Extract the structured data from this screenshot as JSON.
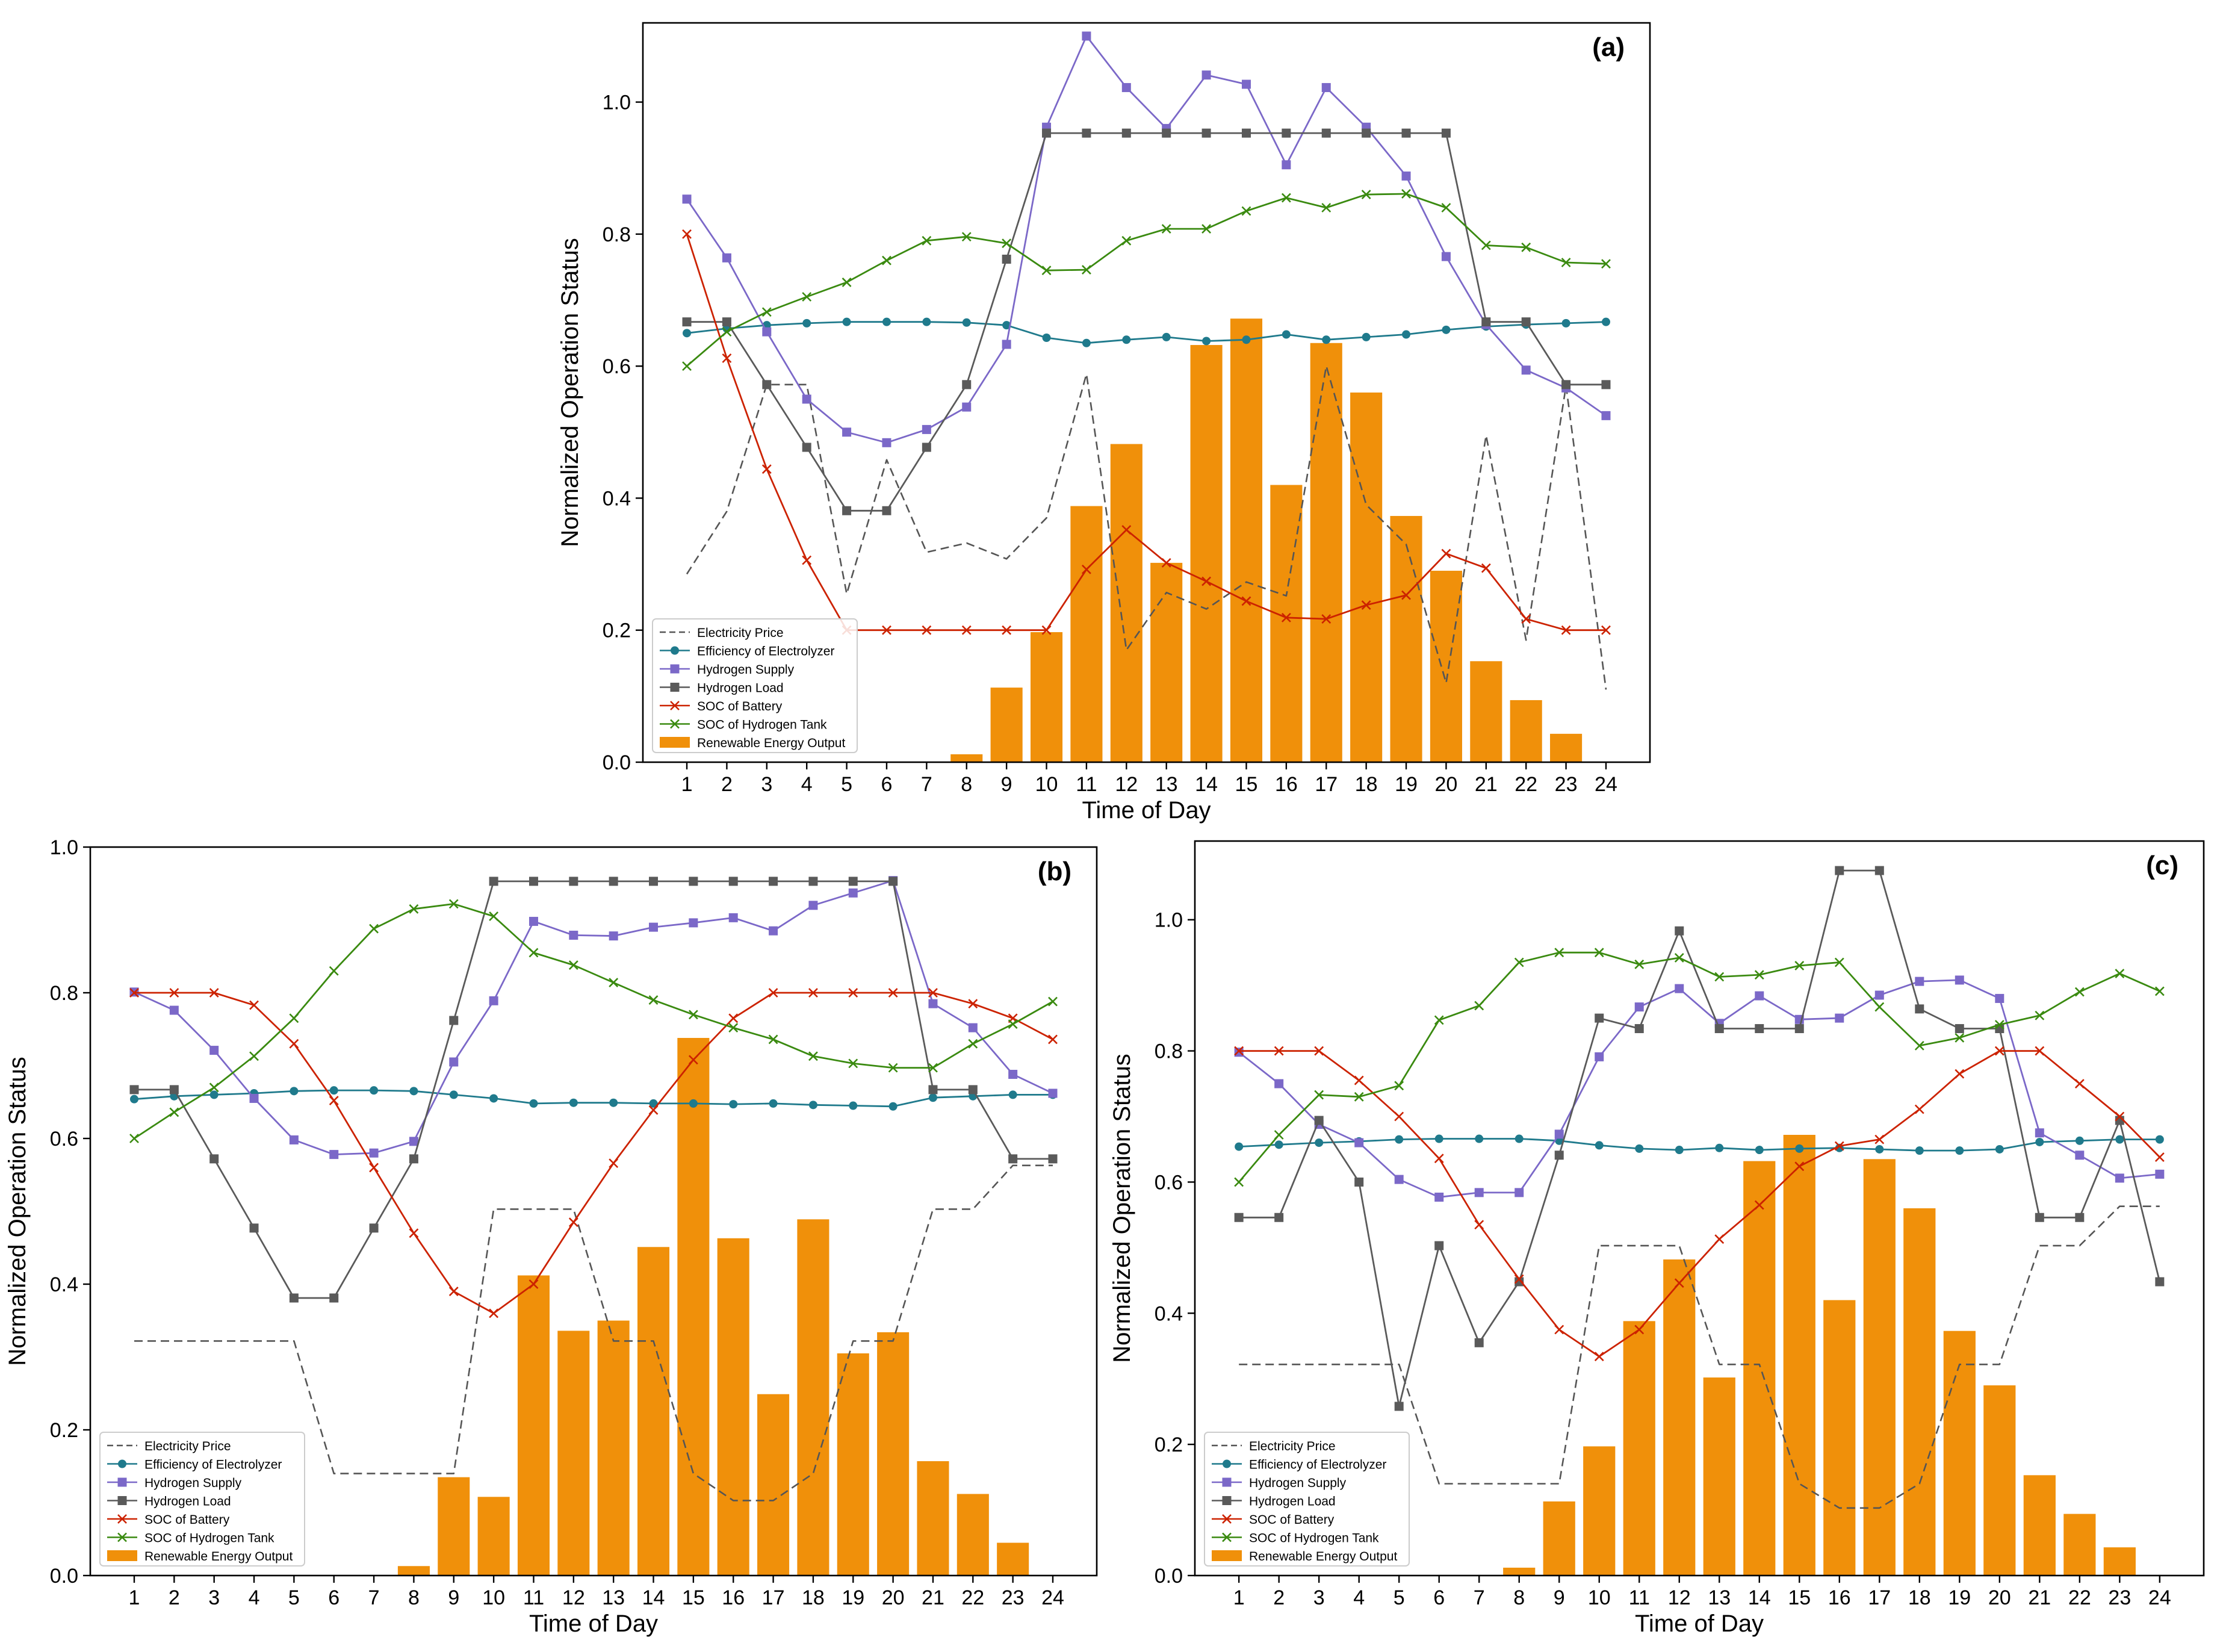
{
  "legend": {
    "price": "Electricity Price",
    "eff": "Efficiency of Electrolyzer",
    "supply": "Hydrogen Supply",
    "load": "Hydrogen Load",
    "socb": "SOC of Battery",
    "soch": "SOC of Hydrogen Tank",
    "ren": "Renewable Energy Output"
  },
  "colors": {
    "price": "#555555",
    "eff": "#1f7a8c",
    "supply": "#7b68c8",
    "load": "#5a5a5a",
    "socb": "#cc2200",
    "soch": "#3a8a10",
    "ren": "#f0900a"
  },
  "chart_data": [
    {
      "panel": "(a)",
      "type": "bar+line",
      "xlabel": "Time of Day",
      "ylabel": "Normalized Operation Status",
      "categories": [
        1,
        2,
        3,
        4,
        5,
        6,
        7,
        8,
        9,
        10,
        11,
        12,
        13,
        14,
        15,
        16,
        17,
        18,
        19,
        20,
        21,
        22,
        23,
        24
      ],
      "ylim": [
        0,
        1.12
      ],
      "yticks": [
        0.0,
        0.2,
        0.4,
        0.6,
        0.8,
        1.0
      ],
      "ren": [
        0,
        0,
        0,
        0,
        0,
        0,
        0,
        0.012,
        0.113,
        0.197,
        0.388,
        0.482,
        0.302,
        0.632,
        0.672,
        0.42,
        0.635,
        0.56,
        0.373,
        0.29,
        0.153,
        0.094,
        0.043,
        0
      ],
      "price": [
        0.285,
        0.38,
        0.572,
        0.572,
        0.255,
        0.458,
        0.318,
        0.332,
        0.308,
        0.37,
        0.588,
        0.17,
        0.257,
        0.232,
        0.273,
        0.252,
        0.6,
        0.39,
        0.33,
        0.12,
        0.495,
        0.185,
        0.57,
        0.11
      ],
      "eff": [
        0.65,
        0.657,
        0.662,
        0.665,
        0.667,
        0.667,
        0.667,
        0.666,
        0.662,
        0.643,
        0.635,
        0.64,
        0.644,
        0.638,
        0.64,
        0.648,
        0.64,
        0.644,
        0.648,
        0.655,
        0.66,
        0.663,
        0.665,
        0.667
      ],
      "supply": [
        0.853,
        0.764,
        0.652,
        0.55,
        0.5,
        0.484,
        0.504,
        0.538,
        0.633,
        0.962,
        1.1,
        1.022,
        0.96,
        1.041,
        1.027,
        0.905,
        1.022,
        0.962,
        0.888,
        0.766,
        0.663,
        0.594,
        0.567,
        0.525
      ],
      "load": [
        0.667,
        0.667,
        0.572,
        0.477,
        0.381,
        0.381,
        0.477,
        0.572,
        0.762,
        0.953,
        0.953,
        0.953,
        0.953,
        0.953,
        0.953,
        0.953,
        0.953,
        0.953,
        0.953,
        0.953,
        0.667,
        0.667,
        0.572,
        0.572
      ],
      "socb": [
        0.8,
        0.612,
        0.444,
        0.306,
        0.2,
        0.2,
        0.2,
        0.2,
        0.2,
        0.2,
        0.292,
        0.352,
        0.302,
        0.274,
        0.244,
        0.219,
        0.217,
        0.238,
        0.253,
        0.316,
        0.294,
        0.217,
        0.2,
        0.2
      ],
      "soch": [
        0.6,
        0.652,
        0.682,
        0.705,
        0.727,
        0.76,
        0.79,
        0.796,
        0.786,
        0.745,
        0.746,
        0.79,
        0.808,
        0.808,
        0.835,
        0.855,
        0.84,
        0.86,
        0.861,
        0.84,
        0.783,
        0.78,
        0.757,
        0.755
      ]
    },
    {
      "panel": "(b)",
      "type": "bar+line",
      "xlabel": "Time of Day",
      "ylabel": "Normalized Operation Status",
      "categories": [
        1,
        2,
        3,
        4,
        5,
        6,
        7,
        8,
        9,
        10,
        11,
        12,
        13,
        14,
        15,
        16,
        17,
        18,
        19,
        20,
        21,
        22,
        23,
        24
      ],
      "ylim": [
        0,
        1.0
      ],
      "yticks": [
        0.0,
        0.2,
        0.4,
        0.6,
        0.8,
        1.0
      ],
      "ren": [
        0,
        0,
        0,
        0,
        0,
        0,
        0,
        0.013,
        0.135,
        0.108,
        0.412,
        0.336,
        0.35,
        0.451,
        0.738,
        0.463,
        0.249,
        0.489,
        0.305,
        0.334,
        0.157,
        0.112,
        0.045,
        0
      ],
      "price": [
        0.322,
        0.322,
        0.322,
        0.322,
        0.322,
        0.14,
        0.14,
        0.14,
        0.14,
        0.503,
        0.503,
        0.503,
        0.322,
        0.322,
        0.14,
        0.103,
        0.103,
        0.14,
        0.322,
        0.322,
        0.503,
        0.503,
        0.563,
        0.563
      ],
      "eff": [
        0.654,
        0.658,
        0.66,
        0.662,
        0.665,
        0.666,
        0.666,
        0.665,
        0.66,
        0.655,
        0.648,
        0.649,
        0.649,
        0.648,
        0.648,
        0.647,
        0.648,
        0.646,
        0.645,
        0.644,
        0.656,
        0.658,
        0.66,
        0.66
      ],
      "supply": [
        0.801,
        0.776,
        0.721,
        0.655,
        0.598,
        0.578,
        0.58,
        0.596,
        0.705,
        0.789,
        0.898,
        0.879,
        0.878,
        0.89,
        0.896,
        0.903,
        0.885,
        0.92,
        0.937,
        0.954,
        0.785,
        0.752,
        0.688,
        0.662
      ],
      "load": [
        0.667,
        0.667,
        0.572,
        0.477,
        0.381,
        0.381,
        0.477,
        0.572,
        0.762,
        0.953,
        0.953,
        0.953,
        0.953,
        0.953,
        0.953,
        0.953,
        0.953,
        0.953,
        0.953,
        0.953,
        0.667,
        0.667,
        0.572,
        0.572
      ],
      "socb": [
        0.8,
        0.8,
        0.8,
        0.783,
        0.73,
        0.652,
        0.56,
        0.47,
        0.39,
        0.36,
        0.4,
        0.485,
        0.566,
        0.639,
        0.708,
        0.765,
        0.8,
        0.8,
        0.8,
        0.8,
        0.8,
        0.785,
        0.765,
        0.736
      ],
      "soch": [
        0.6,
        0.636,
        0.67,
        0.713,
        0.765,
        0.83,
        0.888,
        0.915,
        0.922,
        0.905,
        0.855,
        0.838,
        0.814,
        0.79,
        0.77,
        0.752,
        0.736,
        0.713,
        0.703,
        0.697,
        0.697,
        0.73,
        0.757,
        0.788
      ]
    },
    {
      "panel": "(c)",
      "type": "bar+line",
      "xlabel": "Time of Day",
      "ylabel": "Normalized Operation Status",
      "categories": [
        1,
        2,
        3,
        4,
        5,
        6,
        7,
        8,
        9,
        10,
        11,
        12,
        13,
        14,
        15,
        16,
        17,
        18,
        19,
        20,
        21,
        22,
        23,
        24
      ],
      "ylim": [
        0,
        1.12
      ],
      "yticks": [
        0.0,
        0.2,
        0.4,
        0.6,
        0.8,
        1.0
      ],
      "ren": [
        0,
        0,
        0,
        0,
        0,
        0,
        0,
        0.012,
        0.113,
        0.197,
        0.388,
        0.482,
        0.302,
        0.632,
        0.672,
        0.42,
        0.635,
        0.56,
        0.373,
        0.29,
        0.153,
        0.094,
        0.043,
        0
      ],
      "price": [
        0.322,
        0.322,
        0.322,
        0.322,
        0.322,
        0.14,
        0.14,
        0.14,
        0.14,
        0.503,
        0.503,
        0.503,
        0.322,
        0.322,
        0.14,
        0.103,
        0.103,
        0.14,
        0.322,
        0.322,
        0.503,
        0.503,
        0.563,
        0.563
      ],
      "eff": [
        0.654,
        0.657,
        0.66,
        0.662,
        0.665,
        0.666,
        0.666,
        0.666,
        0.663,
        0.656,
        0.651,
        0.649,
        0.652,
        0.649,
        0.651,
        0.652,
        0.65,
        0.648,
        0.648,
        0.65,
        0.661,
        0.663,
        0.665,
        0.665
      ],
      "supply": [
        0.798,
        0.75,
        0.688,
        0.66,
        0.604,
        0.577,
        0.584,
        0.584,
        0.673,
        0.791,
        0.867,
        0.895,
        0.842,
        0.884,
        0.848,
        0.85,
        0.885,
        0.906,
        0.908,
        0.88,
        0.675,
        0.641,
        0.606,
        0.612
      ],
      "load": [
        0.546,
        0.546,
        0.694,
        0.6,
        0.258,
        0.503,
        0.355,
        0.448,
        0.641,
        0.85,
        0.834,
        0.983,
        0.834,
        0.834,
        0.834,
        1.075,
        1.075,
        0.864,
        0.834,
        0.834,
        0.546,
        0.546,
        0.694,
        0.448
      ],
      "socb": [
        0.8,
        0.8,
        0.8,
        0.755,
        0.7,
        0.636,
        0.535,
        0.452,
        0.375,
        0.334,
        0.375,
        0.446,
        0.513,
        0.565,
        0.624,
        0.655,
        0.665,
        0.711,
        0.765,
        0.8,
        0.8,
        0.75,
        0.7,
        0.638
      ],
      "soch": [
        0.6,
        0.672,
        0.733,
        0.73,
        0.747,
        0.847,
        0.869,
        0.935,
        0.95,
        0.95,
        0.932,
        0.942,
        0.913,
        0.916,
        0.93,
        0.935,
        0.867,
        0.808,
        0.82,
        0.84,
        0.854,
        0.89,
        0.918,
        0.891
      ]
    }
  ]
}
